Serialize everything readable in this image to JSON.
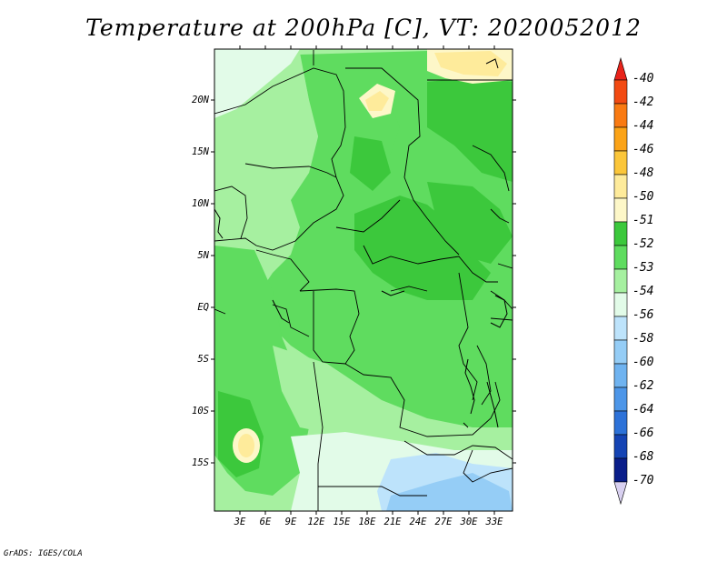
{
  "title": "Temperature at 200hPa [C], VT: 2020052012",
  "footer": "GrADS: IGES/COLA",
  "lat_labels": [
    "20N",
    "15N",
    "10N",
    "5N",
    "EQ",
    "5S",
    "10S",
    "15S"
  ],
  "lon_labels": [
    "3E",
    "6E",
    "9E",
    "12E",
    "15E",
    "18E",
    "21E",
    "24E",
    "27E",
    "30E",
    "33E"
  ],
  "colorbar": {
    "labels": [
      "-40",
      "-42",
      "-44",
      "-46",
      "-48",
      "-50",
      "-51",
      "-52",
      "-53",
      "-54",
      "-56",
      "-58",
      "-60",
      "-62",
      "-64",
      "-66",
      "-68",
      "-70"
    ],
    "colors": [
      "#e8231a",
      "#f24a12",
      "#f97a12",
      "#fba317",
      "#fbc63a",
      "#feeb9b",
      "#fdf7c8",
      "#3cc83c",
      "#5fdc5f",
      "#a6f0a0",
      "#e2fbe8",
      "#bde3fb",
      "#95cdf6",
      "#6fb3f0",
      "#4d96e8",
      "#2d72d8",
      "#1544b4",
      "#0a1e8a",
      "#d8d0f0"
    ]
  },
  "map_colors": {
    "c_minus_50": "#feeb9b",
    "c_minus_51": "#fdf7c8",
    "c_minus_52": "#3cc83c",
    "c_minus_53": "#5fdc5f",
    "c_minus_54": "#a6f0a0",
    "c_minus_56": "#e2fbe8",
    "c_minus_58": "#bde3fb",
    "c_minus_60": "#95cdf6"
  }
}
